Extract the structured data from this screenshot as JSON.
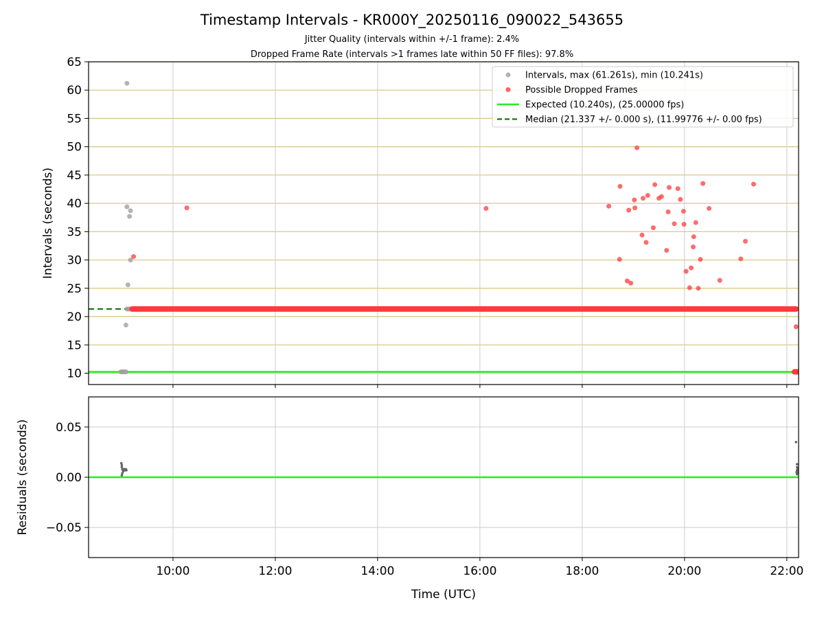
{
  "figure": {
    "title": "Timestamp Intervals - KR000Y_20250116_090022_543655",
    "subtitle_jitter": "Jitter Quality (intervals within +/-1 frame): 2.4%",
    "subtitle_dropped": "Dropped Frame Rate (intervals >1 frames late within 50 FF files): 97.8%"
  },
  "colors": {
    "intervals": "#a0a0a0",
    "dropped": "#ff3b3b",
    "expected": "#22ee22",
    "median": "#127a12",
    "hgrid": "#d8c98a",
    "vgrid": "#cccccc",
    "residuals": "#666666"
  },
  "chart_data": [
    {
      "type": "scatter",
      "panel": "intervals",
      "xlabel": "",
      "ylabel": "Intervals (seconds)",
      "x_unit": "hours UTC",
      "xlim": [
        8.35,
        22.23
      ],
      "ylim": [
        8,
        65
      ],
      "yticks": [
        10,
        15,
        20,
        25,
        30,
        35,
        40,
        45,
        50,
        55,
        60,
        65
      ],
      "grid": "on",
      "legend_position": "top-right",
      "legend": [
        {
          "label": "Intervals, max (61.261s), min (10.241s)",
          "kind": "point",
          "color": "#a0a0a0"
        },
        {
          "label": "Possible Dropped Frames",
          "kind": "point",
          "color": "#ff3b3b"
        },
        {
          "label": "Expected (10.240s), (25.00000 fps)",
          "kind": "line",
          "color": "#22ee22"
        },
        {
          "label": "Median (21.337 +/- 0.000 s), (11.99776 +/- 0.00 fps)",
          "kind": "dashed",
          "color": "#127a12"
        }
      ],
      "expected_value": 10.24,
      "median_value": 21.337,
      "median_line_x_range": [
        8.35,
        9.12
      ],
      "series": [
        {
          "name": "Intervals, max (61.261s), min (10.241s)",
          "points": [
            [
              9.1,
              61.2
            ],
            [
              9.1,
              39.4
            ],
            [
              9.17,
              38.7
            ],
            [
              9.15,
              37.7
            ],
            [
              9.17,
              30.0
            ],
            [
              9.12,
              25.6
            ],
            [
              9.08,
              18.5
            ],
            [
              8.98,
              10.24
            ],
            [
              9.01,
              10.24
            ],
            [
              9.03,
              10.24
            ],
            [
              9.05,
              10.24
            ],
            [
              9.08,
              10.24
            ],
            [
              9.1,
              21.34
            ],
            [
              9.13,
              21.34
            ],
            [
              9.16,
              21.34
            ]
          ]
        },
        {
          "name": "Possible Dropped Frames",
          "dense_band": {
            "value": 21.337,
            "x_from": 9.2,
            "x_to": 22.18
          },
          "terminal_cluster": {
            "value": 10.24,
            "x_from": 22.15,
            "x_to": 22.22
          },
          "points": [
            [
              9.23,
              30.6
            ],
            [
              10.27,
              39.2
            ],
            [
              16.12,
              39.1
            ],
            [
              22.18,
              18.2
            ],
            [
              18.52,
              39.5
            ],
            [
              18.73,
              30.1
            ],
            [
              18.74,
              43.0
            ],
            [
              18.88,
              26.3
            ],
            [
              18.91,
              38.8
            ],
            [
              18.95,
              25.9
            ],
            [
              19.02,
              40.6
            ],
            [
              19.03,
              39.2
            ],
            [
              19.07,
              49.8
            ],
            [
              19.17,
              34.4
            ],
            [
              19.19,
              40.9
            ],
            [
              19.25,
              33.1
            ],
            [
              19.28,
              41.4
            ],
            [
              19.39,
              35.7
            ],
            [
              19.42,
              43.3
            ],
            [
              19.5,
              40.9
            ],
            [
              19.55,
              41.2
            ],
            [
              19.65,
              31.7
            ],
            [
              19.68,
              38.5
            ],
            [
              19.7,
              42.8
            ],
            [
              19.8,
              36.4
            ],
            [
              19.87,
              42.6
            ],
            [
              19.92,
              40.7
            ],
            [
              19.98,
              38.6
            ],
            [
              19.99,
              36.3
            ],
            [
              20.03,
              28.0
            ],
            [
              20.1,
              25.1
            ],
            [
              20.13,
              28.6
            ],
            [
              20.17,
              32.3
            ],
            [
              20.18,
              34.1
            ],
            [
              20.22,
              36.6
            ],
            [
              20.27,
              25.0
            ],
            [
              20.31,
              30.1
            ],
            [
              20.36,
              43.5
            ],
            [
              20.48,
              39.1
            ],
            [
              20.69,
              26.4
            ],
            [
              21.1,
              30.2
            ],
            [
              21.19,
              33.3
            ],
            [
              21.35,
              43.4
            ]
          ]
        }
      ]
    },
    {
      "type": "scatter",
      "panel": "residuals",
      "xlabel": "Time (UTC)",
      "ylabel": "Residuals (seconds)",
      "xlim": [
        8.35,
        22.23
      ],
      "ylim": [
        -0.08,
        0.08
      ],
      "yticks": [
        -0.05,
        0.0,
        0.05
      ],
      "ytick_labels": [
        "−0.05",
        "0.00",
        "0.05"
      ],
      "xticks": [
        10,
        12,
        14,
        16,
        18,
        20,
        22
      ],
      "xtick_labels": [
        "10:00",
        "12:00",
        "14:00",
        "16:00",
        "18:00",
        "20:00",
        "22:00"
      ],
      "grid": "on",
      "zero_line": 0.0,
      "series": [
        {
          "name": "",
          "points": [
            [
              8.99,
              0.014
            ],
            [
              9.0,
              0.012
            ],
            [
              9.0,
              0.01
            ],
            [
              9.01,
              0.008
            ],
            [
              9.02,
              0.007
            ],
            [
              9.03,
              0.006
            ],
            [
              9.04,
              0.008
            ],
            [
              9.05,
              0.007
            ],
            [
              9.06,
              0.008
            ],
            [
              9.07,
              0.007
            ],
            [
              9.08,
              0.008
            ],
            [
              9.09,
              0.007
            ],
            [
              9.01,
              0.004
            ],
            [
              9.0,
              0.002
            ],
            [
              22.18,
              0.035
            ],
            [
              22.2,
              0.013
            ],
            [
              22.2,
              0.01
            ],
            [
              22.21,
              0.008
            ],
            [
              22.2,
              0.007
            ],
            [
              22.21,
              0.006
            ],
            [
              22.19,
              0.005
            ],
            [
              22.21,
              0.004
            ],
            [
              22.2,
              0.003
            ]
          ]
        }
      ]
    }
  ]
}
